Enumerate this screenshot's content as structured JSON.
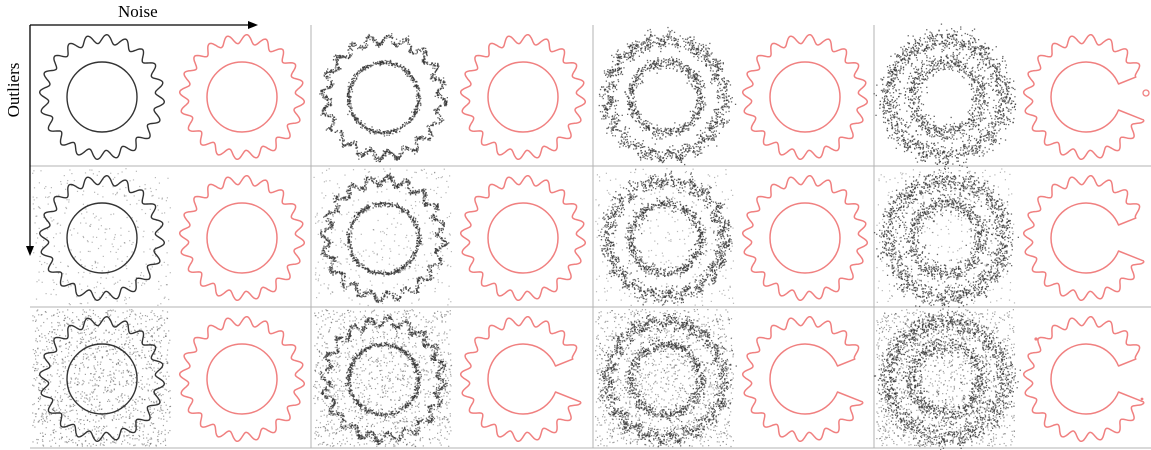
{
  "figure": {
    "noise_axis_label": "Noise",
    "outliers_axis_label": "Outliers",
    "noise_levels": 4,
    "outlier_levels": 3,
    "colors": {
      "input_points": "#333333",
      "result_curve": "#f08080",
      "grid_line": "#b3b3b3",
      "axis": "#000000"
    },
    "cells": [
      {
        "row": 0,
        "col": 0,
        "noise": 0,
        "outliers": 0,
        "result": "full"
      },
      {
        "row": 0,
        "col": 1,
        "noise": 1,
        "outliers": 0,
        "result": "full"
      },
      {
        "row": 0,
        "col": 2,
        "noise": 2,
        "outliers": 0,
        "result": "full"
      },
      {
        "row": 0,
        "col": 3,
        "noise": 3,
        "outliers": 0,
        "result": "c-shape"
      },
      {
        "row": 1,
        "col": 0,
        "noise": 0,
        "outliers": 1,
        "result": "full"
      },
      {
        "row": 1,
        "col": 1,
        "noise": 1,
        "outliers": 1,
        "result": "full"
      },
      {
        "row": 1,
        "col": 2,
        "noise": 2,
        "outliers": 1,
        "result": "full"
      },
      {
        "row": 1,
        "col": 3,
        "noise": 3,
        "outliers": 1,
        "result": "c-shape"
      },
      {
        "row": 2,
        "col": 0,
        "noise": 0,
        "outliers": 2,
        "result": "full"
      },
      {
        "row": 2,
        "col": 1,
        "noise": 1,
        "outliers": 2,
        "result": "c-shape"
      },
      {
        "row": 2,
        "col": 2,
        "noise": 2,
        "outliers": 2,
        "result": "c-shape"
      },
      {
        "row": 2,
        "col": 3,
        "noise": 3,
        "outliers": 2,
        "result": "broken"
      }
    ]
  }
}
